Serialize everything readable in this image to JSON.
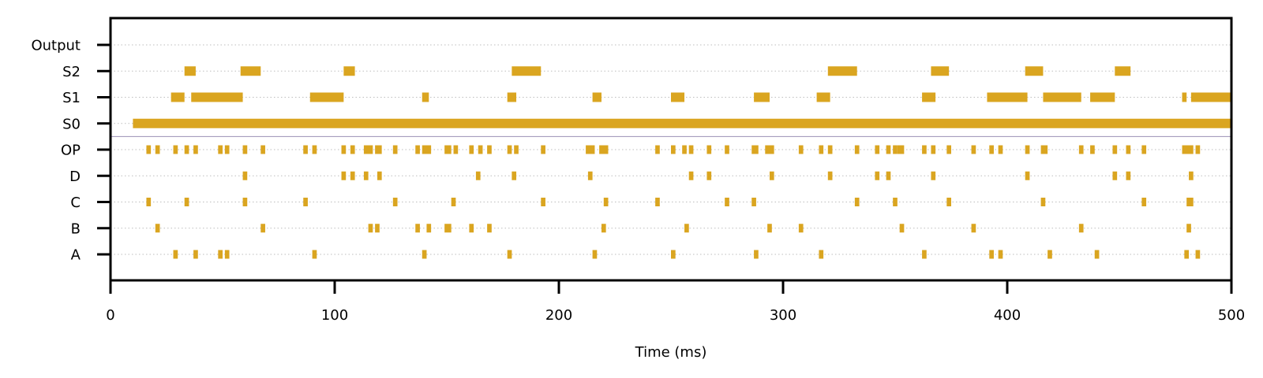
{
  "chart_data": {
    "type": "raster",
    "xlabel": "Time (ms)",
    "ylabel": "",
    "title": "",
    "xlim": [
      0,
      500
    ],
    "xticks": [
      0,
      100,
      200,
      300,
      400,
      500
    ],
    "grid": "horizontal dotted",
    "spike_color": "#DAA520",
    "separator_color": "#9a8fb5",
    "rows": [
      "A",
      "B",
      "C",
      "D",
      "OP",
      "S0",
      "S1",
      "S2",
      "Output"
    ],
    "events": {
      "A": [
        [
          28,
          30
        ],
        [
          37,
          39
        ],
        [
          48,
          50
        ],
        [
          51,
          53
        ],
        [
          90,
          92
        ],
        [
          139,
          141
        ],
        [
          177,
          179
        ],
        [
          215,
          217
        ],
        [
          250,
          252
        ],
        [
          287,
          289
        ],
        [
          316,
          318
        ],
        [
          362,
          364
        ],
        [
          392,
          394
        ],
        [
          396,
          398
        ],
        [
          418,
          420
        ],
        [
          439,
          441
        ],
        [
          479,
          481
        ],
        [
          484,
          486
        ]
      ],
      "B": [
        [
          20,
          22
        ],
        [
          67,
          69
        ],
        [
          115,
          117
        ],
        [
          118,
          120
        ],
        [
          136,
          138
        ],
        [
          141,
          143
        ],
        [
          149,
          152
        ],
        [
          160,
          162
        ],
        [
          168,
          170
        ],
        [
          219,
          221
        ],
        [
          256,
          258
        ],
        [
          293,
          295
        ],
        [
          307,
          309
        ],
        [
          352,
          354
        ],
        [
          384,
          386
        ],
        [
          432,
          434
        ],
        [
          480,
          482
        ]
      ],
      "C": [
        [
          16,
          18
        ],
        [
          33,
          35
        ],
        [
          59,
          61
        ],
        [
          86,
          88
        ],
        [
          126,
          128
        ],
        [
          152,
          154
        ],
        [
          192,
          194
        ],
        [
          220,
          222
        ],
        [
          243,
          245
        ],
        [
          274,
          276
        ],
        [
          286,
          288
        ],
        [
          332,
          334
        ],
        [
          349,
          351
        ],
        [
          373,
          375
        ],
        [
          415,
          417
        ],
        [
          460,
          462
        ],
        [
          480,
          483
        ]
      ],
      "D": [
        [
          59,
          61
        ],
        [
          103,
          105
        ],
        [
          107,
          109
        ],
        [
          113,
          115
        ],
        [
          119,
          121
        ],
        [
          163,
          165
        ],
        [
          179,
          181
        ],
        [
          213,
          215
        ],
        [
          258,
          260
        ],
        [
          266,
          268
        ],
        [
          294,
          296
        ],
        [
          320,
          322
        ],
        [
          341,
          343
        ],
        [
          346,
          348
        ],
        [
          366,
          368
        ],
        [
          408,
          410
        ],
        [
          447,
          449
        ],
        [
          453,
          455
        ],
        [
          481,
          483
        ]
      ],
      "OP": [
        [
          16,
          18
        ],
        [
          20,
          22
        ],
        [
          28,
          30
        ],
        [
          33,
          35
        ],
        [
          37,
          39
        ],
        [
          48,
          50
        ],
        [
          51,
          53
        ],
        [
          59,
          61
        ],
        [
          67,
          69
        ],
        [
          86,
          88
        ],
        [
          90,
          92
        ],
        [
          103,
          105
        ],
        [
          107,
          109
        ],
        [
          113,
          117
        ],
        [
          118,
          121
        ],
        [
          126,
          128
        ],
        [
          136,
          138
        ],
        [
          139,
          143
        ],
        [
          149,
          152
        ],
        [
          153,
          155
        ],
        [
          160,
          162
        ],
        [
          164,
          166
        ],
        [
          168,
          170
        ],
        [
          177,
          179
        ],
        [
          180,
          182
        ],
        [
          192,
          194
        ],
        [
          212,
          216
        ],
        [
          218,
          222
        ],
        [
          243,
          245
        ],
        [
          250,
          252
        ],
        [
          255,
          257
        ],
        [
          258,
          260
        ],
        [
          266,
          268
        ],
        [
          274,
          276
        ],
        [
          286,
          289
        ],
        [
          292,
          296
        ],
        [
          307,
          309
        ],
        [
          316,
          318
        ],
        [
          320,
          322
        ],
        [
          332,
          334
        ],
        [
          341,
          343
        ],
        [
          346,
          348
        ],
        [
          349,
          351
        ],
        [
          351,
          354
        ],
        [
          362,
          364
        ],
        [
          366,
          368
        ],
        [
          373,
          375
        ],
        [
          384,
          386
        ],
        [
          392,
          394
        ],
        [
          396,
          398
        ],
        [
          408,
          410
        ],
        [
          415,
          418
        ],
        [
          432,
          434
        ],
        [
          437,
          439
        ],
        [
          447,
          449
        ],
        [
          453,
          455
        ],
        [
          460,
          462
        ],
        [
          478,
          483
        ],
        [
          484,
          486
        ]
      ],
      "S0": [
        [
          10,
          500
        ]
      ],
      "S1": [
        [
          27,
          33
        ],
        [
          36,
          59
        ],
        [
          89,
          104
        ],
        [
          139,
          142
        ],
        [
          177,
          181
        ],
        [
          215,
          219
        ],
        [
          250,
          256
        ],
        [
          287,
          294
        ],
        [
          315,
          321
        ],
        [
          362,
          368
        ],
        [
          391,
          409
        ],
        [
          416,
          433
        ],
        [
          437,
          448
        ],
        [
          478,
          480
        ],
        [
          482,
          500
        ]
      ],
      "S2": [
        [
          33,
          38
        ],
        [
          58,
          67
        ],
        [
          104,
          109
        ],
        [
          179,
          192
        ],
        [
          320,
          333
        ],
        [
          366,
          374
        ],
        [
          408,
          416
        ],
        [
          448,
          455
        ]
      ],
      "Output": []
    }
  }
}
